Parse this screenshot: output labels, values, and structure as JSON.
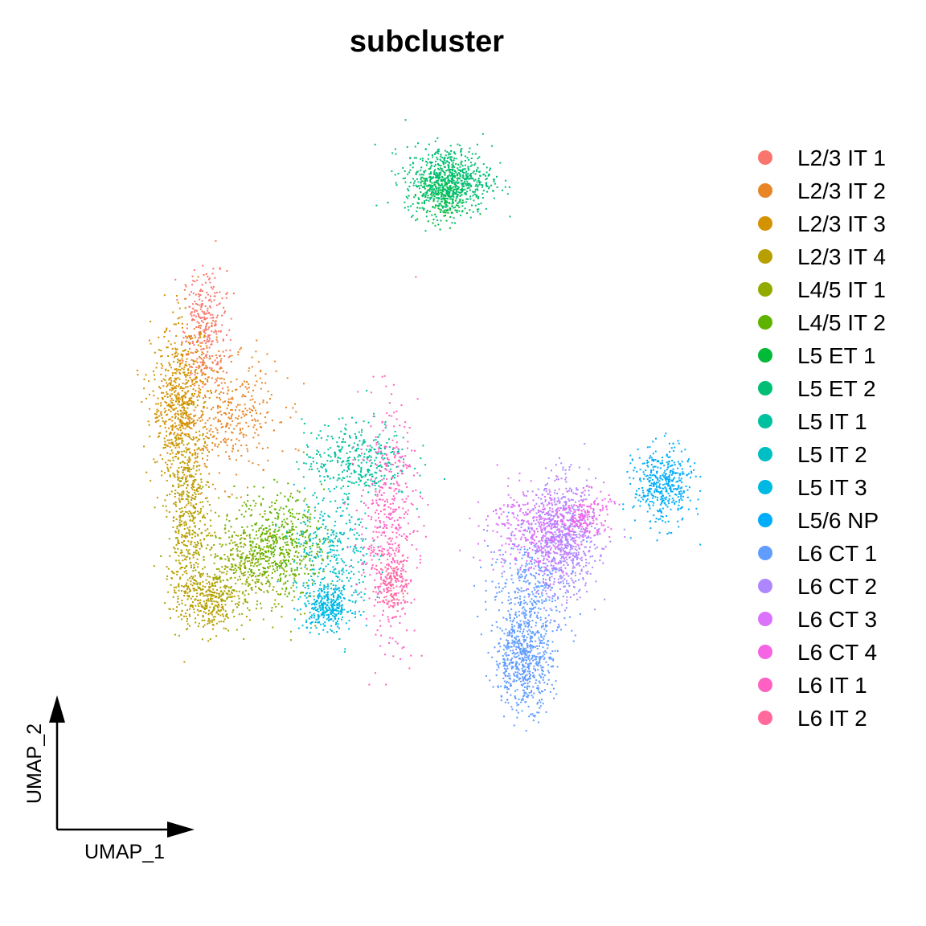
{
  "chart_data": {
    "type": "scatter",
    "title": "subcluster",
    "xlabel": "UMAP_1",
    "ylabel": "UMAP_2",
    "axes_shown": "arrow-guide-bottom-left",
    "grid": false,
    "legend_position": "right",
    "series": [
      {
        "name": "L2/3 IT 1",
        "color": "#F8766D",
        "clusters": [
          {
            "x": -9.2,
            "y": 8.8,
            "sx": 0.45,
            "sy": 1.2,
            "n": 300
          }
        ]
      },
      {
        "name": "L2/3 IT 2",
        "color": "#E88526",
        "clusters": [
          {
            "x": -8.3,
            "y": 5.2,
            "sx": 1.1,
            "sy": 1.3,
            "n": 380
          }
        ]
      },
      {
        "name": "L2/3 IT 3",
        "color": "#D39200",
        "clusters": [
          {
            "x": -10.2,
            "y": 5.6,
            "sx": 0.6,
            "sy": 1.6,
            "n": 650
          }
        ]
      },
      {
        "name": "L2/3 IT 4",
        "color": "#B79F00",
        "clusters": [
          {
            "x": -9.9,
            "y": 0.8,
            "sx": 0.45,
            "sy": 2.0,
            "n": 500
          },
          {
            "x": -9.1,
            "y": -2.5,
            "sx": 0.6,
            "sy": 0.6,
            "n": 280
          }
        ]
      },
      {
        "name": "L4/5 IT 1",
        "color": "#93AA00",
        "clusters": [
          {
            "x": -7.4,
            "y": -1.1,
            "sx": 1.2,
            "sy": 1.1,
            "n": 450
          }
        ]
      },
      {
        "name": "L4/5 IT 2",
        "color": "#5EB300",
        "clusters": [
          {
            "x": -6.1,
            "y": -0.1,
            "sx": 0.9,
            "sy": 1.0,
            "n": 450
          }
        ]
      },
      {
        "name": "L5 ET 1",
        "color": "#00BA38",
        "clusters": [
          {
            "x": 0.7,
            "y": 14.3,
            "sx": 0.5,
            "sy": 0.6,
            "n": 250
          }
        ]
      },
      {
        "name": "L5 ET 2",
        "color": "#00BF74",
        "clusters": [
          {
            "x": 0.9,
            "y": 14.9,
            "sx": 0.9,
            "sy": 0.7,
            "n": 650
          }
        ]
      },
      {
        "name": "L5 IT 1",
        "color": "#00C19F",
        "clusters": [
          {
            "x": -2.9,
            "y": 3.3,
            "sx": 1.1,
            "sy": 0.8,
            "n": 360
          }
        ]
      },
      {
        "name": "L5 IT 2",
        "color": "#00BFC4",
        "clusters": [
          {
            "x": -3.9,
            "y": -0.6,
            "sx": 0.8,
            "sy": 1.3,
            "n": 320
          }
        ]
      },
      {
        "name": "L5 IT 3",
        "color": "#00B9E3",
        "clusters": [
          {
            "x": -4.1,
            "y": -2.8,
            "sx": 0.5,
            "sy": 0.45,
            "n": 320
          }
        ]
      },
      {
        "name": "L5/6 NP",
        "color": "#00ADFA",
        "clusters": [
          {
            "x": 9.8,
            "y": 2.2,
            "sx": 0.6,
            "sy": 0.8,
            "n": 420
          }
        ]
      },
      {
        "name": "L6 CT 1",
        "color": "#619CFF",
        "clusters": [
          {
            "x": 4.0,
            "y": -5.0,
            "sx": 0.6,
            "sy": 1.0,
            "n": 620
          },
          {
            "x": 4.4,
            "y": -2.0,
            "sx": 0.9,
            "sy": 1.1,
            "n": 330
          }
        ]
      },
      {
        "name": "L6 CT 2",
        "color": "#AE87FF",
        "clusters": [
          {
            "x": 5.7,
            "y": 0.0,
            "sx": 0.7,
            "sy": 1.2,
            "n": 720
          }
        ]
      },
      {
        "name": "L6 CT 3",
        "color": "#DB72FB",
        "clusters": [
          {
            "x": 4.5,
            "y": 0.4,
            "sx": 1.0,
            "sy": 0.9,
            "n": 400
          }
        ]
      },
      {
        "name": "L6 CT 4",
        "color": "#F564E3",
        "clusters": [
          {
            "x": 6.6,
            "y": 1.0,
            "sx": 0.5,
            "sy": 0.5,
            "n": 150
          }
        ]
      },
      {
        "name": "L6 IT 1",
        "color": "#FF61C3",
        "clusters": [
          {
            "x": -1.6,
            "y": 0.6,
            "sx": 0.6,
            "sy": 2.4,
            "n": 480
          }
        ]
      },
      {
        "name": "L6 IT 2",
        "color": "#FF699C",
        "clusters": [
          {
            "x": -1.4,
            "y": -1.7,
            "sx": 0.3,
            "sy": 0.7,
            "n": 160
          }
        ]
      }
    ]
  }
}
